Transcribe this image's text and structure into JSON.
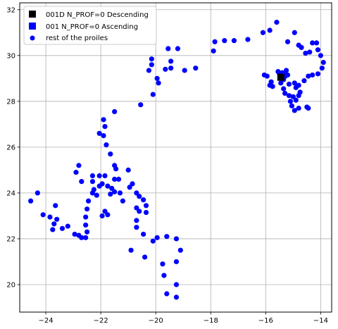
{
  "chart_data": {
    "type": "scatter",
    "title": "",
    "xlabel": "",
    "ylabel": "",
    "xlim": [
      -24.95,
      -13.6
    ],
    "ylim": [
      18.8,
      32.3
    ],
    "xticks": [
      -24,
      -22,
      -20,
      -18,
      -16,
      -14
    ],
    "yticks": [
      20,
      22,
      24,
      26,
      28,
      30,
      32
    ],
    "grid": true,
    "legend_position": "top-left",
    "series": [
      {
        "name": "001D N_PROF=0 Descending",
        "marker": "square",
        "color": "#000000",
        "points": [
          [
            -15.45,
            29.05
          ]
        ]
      },
      {
        "name": "001 N_PROF=0 Ascending",
        "marker": "square",
        "color": "#0000ff",
        "points": [
          [
            -15.35,
            29.15
          ]
        ]
      },
      {
        "name": "rest of the proiles",
        "marker": "circle",
        "color": "#0000ff",
        "points": [
          [
            -24.55,
            23.65
          ],
          [
            -24.3,
            24.0
          ],
          [
            -24.1,
            23.05
          ],
          [
            -23.85,
            22.95
          ],
          [
            -23.75,
            22.4
          ],
          [
            -23.7,
            22.65
          ],
          [
            -23.65,
            23.45
          ],
          [
            -23.6,
            22.85
          ],
          [
            -23.4,
            22.45
          ],
          [
            -23.2,
            22.55
          ],
          [
            -22.95,
            22.2
          ],
          [
            -22.8,
            22.15
          ],
          [
            -22.7,
            22.05
          ],
          [
            -22.55,
            22.05
          ],
          [
            -22.5,
            22.3
          ],
          [
            -22.55,
            22.6
          ],
          [
            -22.55,
            22.95
          ],
          [
            -22.5,
            23.3
          ],
          [
            -22.45,
            23.65
          ],
          [
            -22.3,
            24.0
          ],
          [
            -22.3,
            24.5
          ],
          [
            -22.3,
            24.75
          ],
          [
            -22.25,
            24.15
          ],
          [
            -22.15,
            23.9
          ],
          [
            -22.05,
            24.3
          ],
          [
            -22.05,
            24.75
          ],
          [
            -21.95,
            24.4
          ],
          [
            -21.85,
            24.75
          ],
          [
            -21.75,
            24.3
          ],
          [
            -21.6,
            24.2
          ],
          [
            -21.5,
            24.6
          ],
          [
            -21.95,
            23.0
          ],
          [
            -21.85,
            23.2
          ],
          [
            -21.75,
            23.05
          ],
          [
            -22.9,
            24.9
          ],
          [
            -22.8,
            25.2
          ],
          [
            -22.7,
            24.5
          ],
          [
            -21.65,
            23.95
          ],
          [
            -21.5,
            24.05
          ],
          [
            -21.35,
            24.6
          ],
          [
            -21.3,
            24.0
          ],
          [
            -21.2,
            23.65
          ],
          [
            -21.0,
            25.0
          ],
          [
            -20.95,
            24.25
          ],
          [
            -20.85,
            24.4
          ],
          [
            -20.7,
            24.0
          ],
          [
            -20.6,
            23.85
          ],
          [
            -20.45,
            23.7
          ],
          [
            -20.35,
            23.45
          ],
          [
            -20.35,
            23.15
          ],
          [
            -20.6,
            23.2
          ],
          [
            -20.7,
            23.35
          ],
          [
            -20.7,
            22.8
          ],
          [
            -20.7,
            22.5
          ],
          [
            -20.45,
            22.2
          ],
          [
            -20.1,
            21.9
          ],
          [
            -19.95,
            22.05
          ],
          [
            -19.6,
            22.1
          ],
          [
            -19.75,
            20.9
          ],
          [
            -19.7,
            20.4
          ],
          [
            -19.6,
            19.6
          ],
          [
            -19.25,
            19.45
          ],
          [
            -19.25,
            20.0
          ],
          [
            -19.25,
            21.0
          ],
          [
            -19.25,
            22.0
          ],
          [
            -19.1,
            21.5
          ],
          [
            -20.9,
            21.5
          ],
          [
            -20.4,
            21.2
          ],
          [
            -21.5,
            25.2
          ],
          [
            -21.45,
            25.05
          ],
          [
            -21.65,
            25.7
          ],
          [
            -21.5,
            27.55
          ],
          [
            -21.9,
            27.2
          ],
          [
            -21.85,
            26.9
          ],
          [
            -22.05,
            26.6
          ],
          [
            -21.9,
            26.5
          ],
          [
            -21.8,
            26.1
          ],
          [
            -20.55,
            27.85
          ],
          [
            -20.15,
            29.6
          ],
          [
            -20.15,
            29.85
          ],
          [
            -20.25,
            29.35
          ],
          [
            -20.1,
            28.3
          ],
          [
            -19.95,
            29.0
          ],
          [
            -19.9,
            28.8
          ],
          [
            -19.65,
            29.4
          ],
          [
            -19.55,
            30.3
          ],
          [
            -19.45,
            29.75
          ],
          [
            -19.45,
            29.45
          ],
          [
            -19.2,
            30.3
          ],
          [
            -18.95,
            29.35
          ],
          [
            -18.55,
            29.45
          ],
          [
            -17.9,
            30.2
          ],
          [
            -17.85,
            30.6
          ],
          [
            -17.5,
            30.65
          ],
          [
            -17.15,
            30.65
          ],
          [
            -16.65,
            30.7
          ],
          [
            -16.1,
            31.0
          ],
          [
            -15.85,
            31.1
          ],
          [
            -15.6,
            31.45
          ],
          [
            -15.2,
            30.6
          ],
          [
            -14.95,
            31.0
          ],
          [
            -14.8,
            30.45
          ],
          [
            -14.7,
            30.35
          ],
          [
            -14.55,
            30.1
          ],
          [
            -14.4,
            30.15
          ],
          [
            -14.3,
            30.55
          ],
          [
            -14.15,
            30.55
          ],
          [
            -14.1,
            30.25
          ],
          [
            -14.0,
            30.0
          ],
          [
            -13.9,
            29.7
          ],
          [
            -13.95,
            29.45
          ],
          [
            -14.1,
            29.2
          ],
          [
            -14.3,
            29.15
          ],
          [
            -14.45,
            29.1
          ],
          [
            -14.6,
            28.9
          ],
          [
            -14.8,
            28.7
          ],
          [
            -14.9,
            28.6
          ],
          [
            -14.95,
            28.8
          ],
          [
            -15.15,
            28.75
          ],
          [
            -15.2,
            29.15
          ],
          [
            -15.25,
            29.35
          ],
          [
            -15.4,
            29.25
          ],
          [
            -15.5,
            29.2
          ],
          [
            -15.55,
            29.3
          ],
          [
            -15.35,
            28.95
          ],
          [
            -15.45,
            28.8
          ],
          [
            -15.8,
            28.85
          ],
          [
            -15.75,
            28.65
          ],
          [
            -15.85,
            28.7
          ],
          [
            -15.95,
            29.1
          ],
          [
            -16.05,
            29.15
          ],
          [
            -15.35,
            28.55
          ],
          [
            -15.3,
            28.35
          ],
          [
            -15.15,
            28.25
          ],
          [
            -15.0,
            28.2
          ],
          [
            -14.9,
            28.05
          ],
          [
            -15.1,
            28.0
          ],
          [
            -15.05,
            27.8
          ],
          [
            -14.95,
            27.6
          ],
          [
            -14.8,
            27.7
          ],
          [
            -14.75,
            28.4
          ],
          [
            -14.8,
            28.25
          ],
          [
            -14.45,
            27.7
          ],
          [
            -14.5,
            27.75
          ]
        ]
      }
    ]
  }
}
